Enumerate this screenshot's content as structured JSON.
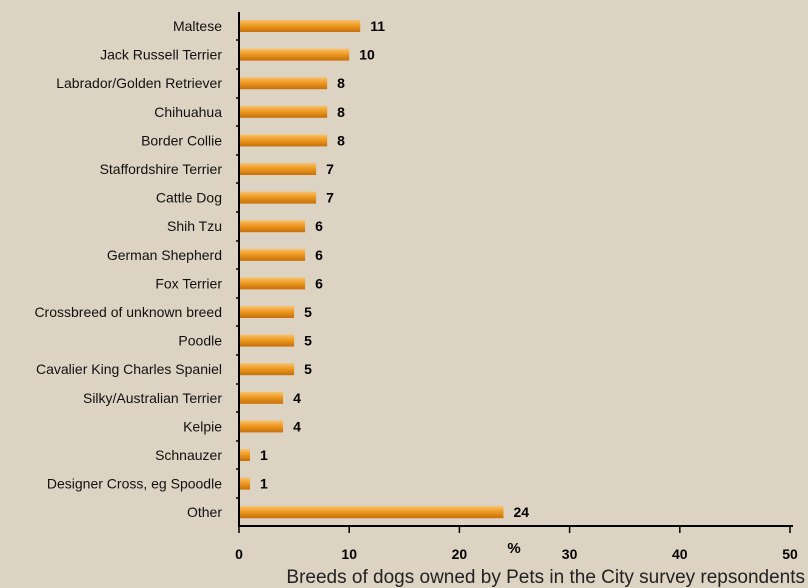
{
  "chart_data": {
    "type": "bar",
    "orientation": "horizontal",
    "categories": [
      "Maltese",
      "Jack Russell Terrier",
      "Labrador/Golden Retriever",
      "Chihuahua",
      "Border Collie",
      "Staffordshire Terrier",
      "Cattle Dog",
      "Shih Tzu",
      "German Shepherd",
      "Fox Terrier",
      "Crossbreed of unknown breed",
      "Poodle",
      "Cavalier King Charles Spaniel",
      "Silky/Australian Terrier",
      "Kelpie",
      "Schnauzer",
      "Designer Cross, eg Spoodle",
      "Other"
    ],
    "values": [
      11,
      10,
      8,
      8,
      8,
      7,
      7,
      6,
      6,
      6,
      5,
      5,
      5,
      4,
      4,
      1,
      1,
      24
    ],
    "xlim": [
      0,
      50
    ],
    "xticks": [
      "0",
      "10",
      "20",
      "30",
      "40",
      "50"
    ],
    "xlabel": "%",
    "caption": "Breeds of dogs owned by Pets in the City survey repsondents",
    "grid": false,
    "legend": "none",
    "colors": {
      "background": "#dcd3c2",
      "bar_light": "#f7c370",
      "bar_mid": "#ef9a22",
      "bar_dark": "#c46f0a",
      "axis": "#000000"
    }
  }
}
